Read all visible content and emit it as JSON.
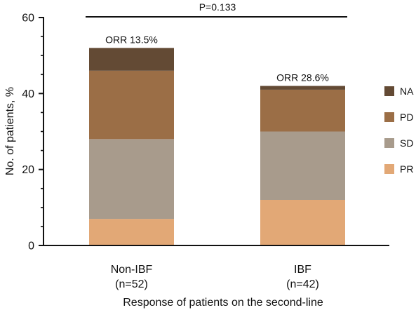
{
  "chart_data": {
    "type": "bar",
    "stacked": true,
    "categories": [
      "Non-IBF",
      "IBF"
    ],
    "category_sublabels": [
      "(n=52)",
      "(n=42)"
    ],
    "series": [
      {
        "name": "PR",
        "values": [
          7,
          12
        ],
        "color": "#E2A876"
      },
      {
        "name": "SD",
        "values": [
          21,
          18
        ],
        "color": "#A89B8C"
      },
      {
        "name": "PD",
        "values": [
          18,
          11
        ],
        "color": "#9B6E46"
      },
      {
        "name": "NA",
        "values": [
          6,
          1
        ],
        "color": "#634A34"
      }
    ],
    "bar_annotations": [
      "ORR 13.5%",
      "ORR 28.6%"
    ],
    "significance": {
      "label": "P=0.133"
    },
    "xlabel": "Response of patients on the second-line",
    "ylabel": "No. of patients, %",
    "ylim": [
      0,
      60
    ],
    "yticks": [
      0,
      20,
      40,
      60
    ],
    "y_minor_tick_interval": 5,
    "grid": false,
    "legend": {
      "placement": "right"
    }
  }
}
